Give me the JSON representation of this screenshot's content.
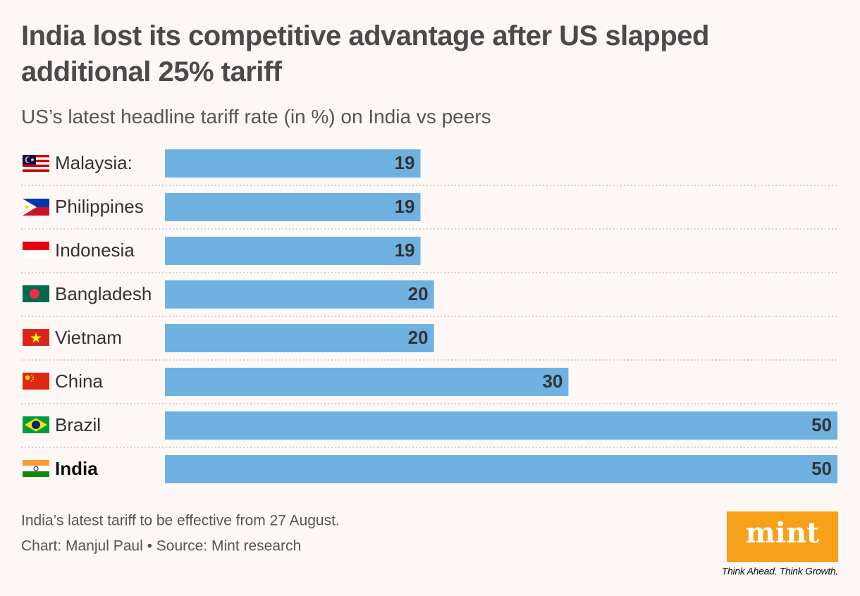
{
  "chart_data": {
    "type": "bar",
    "title": "India lost its competitive advantage after US slapped additional 25% tariff",
    "subtitle": "US’s latest headline tariff rate (in %) on India vs peers",
    "categories": [
      "Malaysia:",
      "Philippines",
      "Indonesia",
      "Bangladesh",
      "Vietnam",
      "China",
      "Brazil",
      "India"
    ],
    "values": [
      19,
      19,
      19,
      20,
      20,
      30,
      50,
      50
    ],
    "color": "#6fb2e2",
    "xlim": [
      0,
      50
    ],
    "note": "India’s latest tariff to be effective from 27 August.",
    "source": "Chart: Manjul Paul • Source: Mint research"
  },
  "branding": {
    "logo": "mint",
    "tagline": "Think Ahead. Think Growth."
  }
}
